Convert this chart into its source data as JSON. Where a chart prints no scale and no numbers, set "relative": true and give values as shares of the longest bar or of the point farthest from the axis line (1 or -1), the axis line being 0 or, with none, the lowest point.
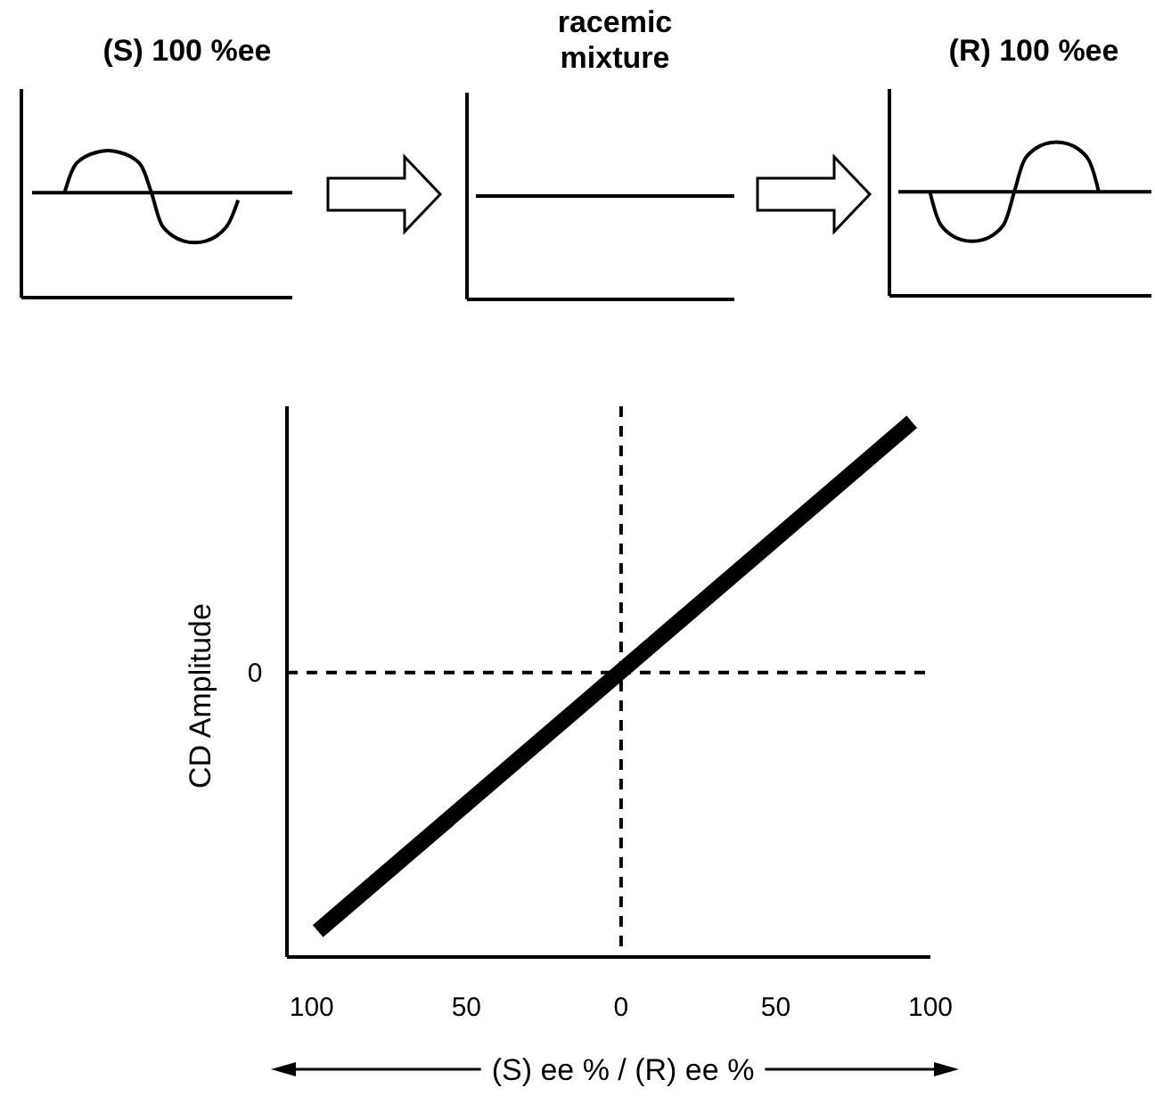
{
  "chart_data": [
    {
      "type": "line",
      "title": "(S) 100 %ee",
      "relative": true,
      "categories": [
        null,
        null,
        null,
        null,
        null,
        null,
        null,
        null,
        null,
        null,
        null,
        null,
        null,
        null,
        null,
        null,
        null,
        null,
        null,
        null,
        null,
        null,
        null,
        null,
        null
      ],
      "series": [
        {
          "color": "#000000",
          "values": [
            null,
            null,
            null,
            0,
            0.56,
            0.73,
            0.81,
            0.84,
            0.81,
            0.73,
            0.56,
            0,
            -0.66,
            -0.87,
            -0.97,
            -1,
            -0.97,
            -0.87,
            -0.66,
            -0.15,
            null,
            null,
            null,
            null,
            null
          ]
        }
      ],
      "ref_lines": [
        {
          "axis": "y",
          "value": 0
        }
      ]
    },
    {
      "type": "other",
      "title": "racemic mixture"
    },
    {
      "type": "line",
      "title": "(R) 100 %ee",
      "relative": true,
      "categories": [
        null,
        null,
        null,
        null,
        null,
        null,
        null,
        null,
        null,
        null,
        null,
        null,
        null,
        null,
        null,
        null,
        null,
        null,
        null,
        null,
        null,
        null,
        null,
        null,
        null
      ],
      "series": [
        {
          "color": "#000000",
          "values": [
            null,
            null,
            null,
            0,
            -0.66,
            -0.87,
            -0.97,
            -1,
            -0.97,
            -0.87,
            -0.66,
            0,
            0.66,
            0.87,
            0.97,
            1,
            0.97,
            0.87,
            0.66,
            0,
            null,
            null,
            null,
            null,
            null
          ]
        }
      ],
      "ref_lines": [
        {
          "axis": "y",
          "value": 0
        }
      ]
    },
    {
      "type": "line",
      "relative": true,
      "xlabel": "(S) ee % / (R) ee %",
      "ylabel": "CD Amplitude",
      "xlim": [
        -108,
        100
      ],
      "xticks": [
        {
          "value": -100,
          "label": "100"
        },
        {
          "value": -50,
          "label": "50"
        },
        0,
        50,
        100
      ],
      "x": [
        -98,
        94
      ],
      "series": [
        {
          "color": "#000000",
          "values": [
            -1,
            0.97
          ]
        }
      ],
      "ref_lines": [
        {
          "axis": "y",
          "value": 0,
          "label": "0",
          "line_style": "dashed"
        },
        {
          "axis": "x",
          "value": 0,
          "line_style": "dashed"
        }
      ]
    }
  ]
}
